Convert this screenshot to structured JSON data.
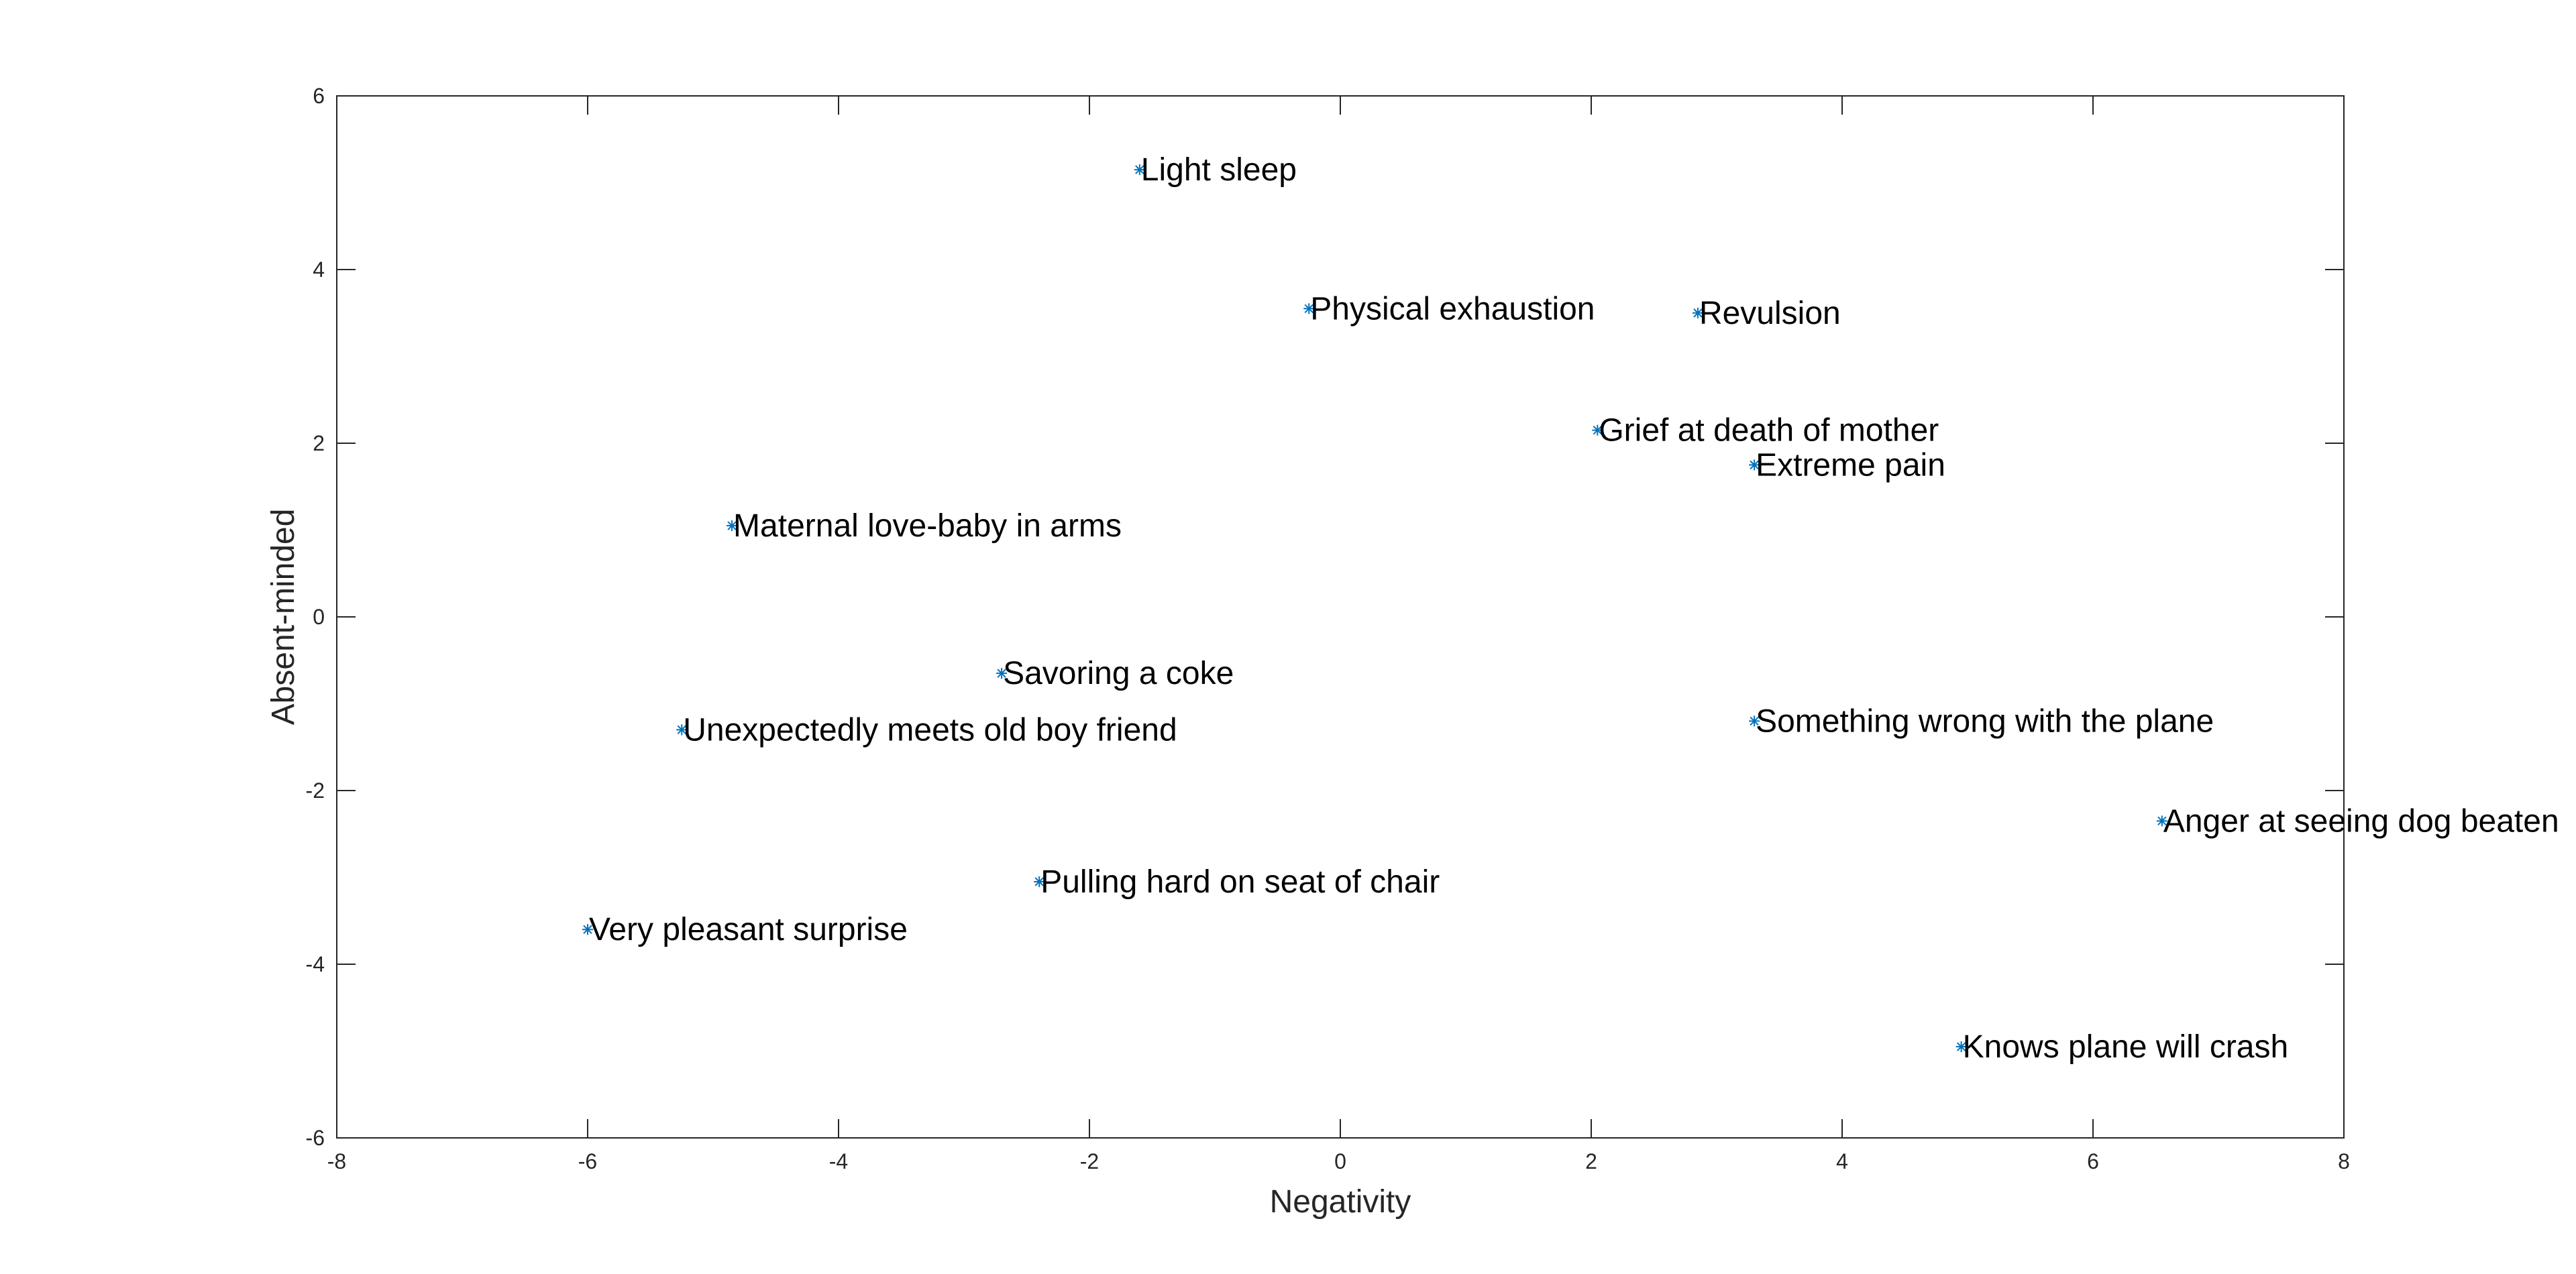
{
  "chart_data": {
    "type": "scatter",
    "title": "",
    "xlabel": "Negativity",
    "ylabel": "Absent-minded",
    "xlim": [
      -8,
      8
    ],
    "ylim": [
      -6,
      6
    ],
    "xticks": [
      -8,
      -6,
      -4,
      -2,
      0,
      2,
      4,
      6,
      8
    ],
    "yticks": [
      -6,
      -4,
      -2,
      0,
      2,
      4,
      6
    ],
    "grid": false,
    "box": true,
    "marker": "*",
    "marker_color": "#0072BD",
    "points": [
      {
        "label": "Light sleep",
        "x": -1.6,
        "y": 5.15
      },
      {
        "label": "Physical exhaustion",
        "x": -0.25,
        "y": 3.55
      },
      {
        "label": "Revulsion",
        "x": 2.85,
        "y": 3.5
      },
      {
        "label": "Grief at death of mother",
        "x": 2.05,
        "y": 2.15
      },
      {
        "label": "Extreme pain",
        "x": 3.3,
        "y": 1.75
      },
      {
        "label": "Maternal love-baby in arms",
        "x": -4.85,
        "y": 1.05
      },
      {
        "label": "Savoring a coke",
        "x": -2.7,
        "y": -0.65
      },
      {
        "label": "Unexpectedly meets old boy friend",
        "x": -5.25,
        "y": -1.3
      },
      {
        "label": "Something wrong with the plane",
        "x": 3.3,
        "y": -1.2
      },
      {
        "label": "Anger at seeing dog beaten",
        "x": 6.55,
        "y": -2.35
      },
      {
        "label": "Pulling hard on seat of chair",
        "x": -2.4,
        "y": -3.05
      },
      {
        "label": "Very pleasant surprise",
        "x": -6.0,
        "y": -3.6
      },
      {
        "label": "Knows plane will crash",
        "x": 4.95,
        "y": -4.95
      }
    ]
  }
}
